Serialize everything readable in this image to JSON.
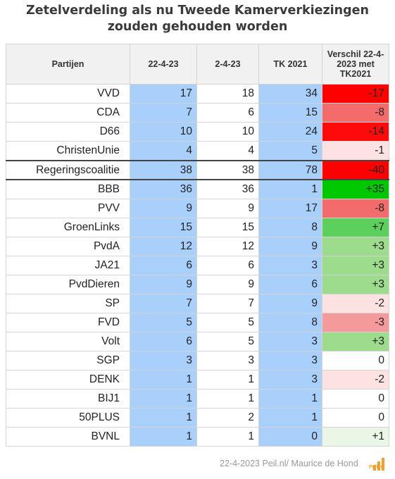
{
  "title": "Zetelverdeling als nu Tweede Kamerverkiezingen zouden gehouden worden",
  "chart_data": {
    "type": "table",
    "columns": [
      "Partijen",
      "22-4-23",
      "2-4-23",
      "TK 2021",
      "Verschil 22-4-2023 met TK2021"
    ],
    "rows": [
      {
        "party": "VVD",
        "now": "17",
        "prev": "18",
        "tk2021": "34",
        "diff": "-17",
        "diff_color": "#ff0000",
        "coalition": false
      },
      {
        "party": "CDA",
        "now": "7",
        "prev": "6",
        "tk2021": "15",
        "diff": "-8",
        "diff_color": "#f36b6b",
        "coalition": false
      },
      {
        "party": "D66",
        "now": "10",
        "prev": "10",
        "tk2021": "24",
        "diff": "-14",
        "diff_color": "#ff0a0a",
        "coalition": false
      },
      {
        "party": "ChristenUnie",
        "now": "4",
        "prev": "4",
        "tk2021": "5",
        "diff": "-1",
        "diff_color": "#fde2e2",
        "coalition": false
      },
      {
        "party": "Regeringscoalitie",
        "now": "38",
        "prev": "38",
        "tk2021": "78",
        "diff": "-40",
        "diff_color": "#ff0000",
        "coalition": true
      },
      {
        "party": "BBB",
        "now": "36",
        "prev": "36",
        "tk2021": "1",
        "diff": "+35",
        "diff_color": "#00c800",
        "coalition": false
      },
      {
        "party": "PVV",
        "now": "9",
        "prev": "9",
        "tk2021": "17",
        "diff": "-8",
        "diff_color": "#f36b6b",
        "coalition": false
      },
      {
        "party": "GroenLinks",
        "now": "15",
        "prev": "15",
        "tk2021": "8",
        "diff": "+7",
        "diff_color": "#5dcf5d",
        "coalition": false
      },
      {
        "party": "PvdA",
        "now": "12",
        "prev": "12",
        "tk2021": "9",
        "diff": "+3",
        "diff_color": "#9cdc8c",
        "coalition": false
      },
      {
        "party": "JA21",
        "now": "6",
        "prev": "6",
        "tk2021": "3",
        "diff": "+3",
        "diff_color": "#9cdc8c",
        "coalition": false
      },
      {
        "party": "PvdDieren",
        "now": "9",
        "prev": "9",
        "tk2021": "6",
        "diff": "+3",
        "diff_color": "#9cdc8c",
        "coalition": false
      },
      {
        "party": "SP",
        "now": "7",
        "prev": "7",
        "tk2021": "9",
        "diff": "-2",
        "diff_color": "#fde2e2",
        "coalition": false
      },
      {
        "party": "FVD",
        "now": "5",
        "prev": "5",
        "tk2021": "8",
        "diff": "-3",
        "diff_color": "#f59a9a",
        "coalition": false
      },
      {
        "party": "Volt",
        "now": "6",
        "prev": "5",
        "tk2021": "3",
        "diff": "+3",
        "diff_color": "#9cdc8c",
        "coalition": false
      },
      {
        "party": "SGP",
        "now": "3",
        "prev": "3",
        "tk2021": "3",
        "diff": "0",
        "diff_color": "#ffffff",
        "coalition": false
      },
      {
        "party": "DENK",
        "now": "1",
        "prev": "1",
        "tk2021": "3",
        "diff": "-2",
        "diff_color": "#fde2e2",
        "coalition": false
      },
      {
        "party": "BIJ1",
        "now": "1",
        "prev": "1",
        "tk2021": "1",
        "diff": "0",
        "diff_color": "#ffffff",
        "coalition": false
      },
      {
        "party": "50PLUS",
        "now": "1",
        "prev": "2",
        "tk2021": "1",
        "diff": "0",
        "diff_color": "#ffffff",
        "coalition": false
      },
      {
        "party": "BVNL",
        "now": "1",
        "prev": "1",
        "tk2021": "0",
        "diff": "+1",
        "diff_color": "#eaf7e6",
        "coalition": false
      }
    ]
  },
  "footer": "22-4-2023 Peil.nl/ Maurice de Hond",
  "logo_text": "Peil.nl"
}
